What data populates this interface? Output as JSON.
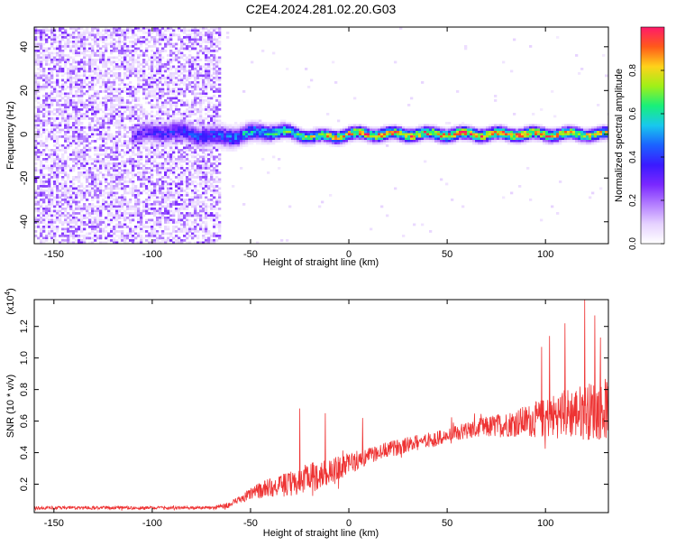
{
  "title": "C2E4.2024.281.02.20.G03",
  "colors": {
    "line": "#ee3333",
    "colormap": [
      "#ffffff",
      "#e6d2ff",
      "#b37dff",
      "#7a28ff",
      "#3a1aff",
      "#1b62ff",
      "#18c8ee",
      "#18f07a",
      "#a0f018",
      "#ffd21a",
      "#ff5a1a",
      "#ff1a6a"
    ]
  },
  "chart_data": [
    {
      "type": "heatmap",
      "xlabel": "Height of straight line (km)",
      "ylabel": "Frequency (Hz)",
      "xlim": [
        -160,
        132
      ],
      "ylim": [
        -50,
        49
      ],
      "x_ticks": [
        -150,
        -100,
        -50,
        0,
        50,
        100
      ],
      "y_ticks": [
        -40,
        -20,
        0,
        20,
        40
      ],
      "colorbar": {
        "label": "Normalized spectral amplitude",
        "range": [
          0,
          1
        ],
        "ticks": [
          0.0,
          0.2,
          0.4,
          0.6,
          0.8
        ]
      },
      "noise_region_x": [
        -160,
        -65
      ],
      "band": [
        {
          "x": -110,
          "amplitude": 0.3,
          "half_width_hz": 5
        },
        {
          "x": -90,
          "amplitude": 0.4,
          "half_width_hz": 5
        },
        {
          "x": -65,
          "amplitude": 0.45,
          "half_width_hz": 5
        },
        {
          "x": -50,
          "amplitude": 0.6,
          "half_width_hz": 4
        },
        {
          "x": -20,
          "amplitude": 0.75,
          "half_width_hz": 3
        },
        {
          "x": 0,
          "amplitude": 0.9,
          "half_width_hz": 3
        },
        {
          "x": 50,
          "amplitude": 0.95,
          "half_width_hz": 3
        },
        {
          "x": 100,
          "amplitude": 0.9,
          "half_width_hz": 3
        },
        {
          "x": 132,
          "amplitude": 0.8,
          "half_width_hz": 3
        }
      ]
    },
    {
      "type": "line",
      "xlabel": "Height of straight line (km)",
      "ylabel": "SNR (10 * v/v)",
      "yscale_label": "(x10",
      "yscale_exponent": "4",
      "xlim": [
        -160,
        132
      ],
      "ylim": [
        0.02,
        1.37
      ],
      "x_ticks": [
        -150,
        -100,
        -50,
        0,
        50,
        100
      ],
      "y_ticks": [
        0.2,
        0.4,
        0.6,
        0.8,
        1.0,
        1.2
      ],
      "envelope": {
        "x": [
          -160,
          -100,
          -70,
          -60,
          -50,
          -40,
          -30,
          -20,
          -10,
          0,
          10,
          20,
          30,
          40,
          50,
          60,
          70,
          80,
          90,
          100,
          110,
          120,
          132
        ],
        "mean": [
          0.05,
          0.05,
          0.05,
          0.07,
          0.14,
          0.18,
          0.2,
          0.24,
          0.28,
          0.33,
          0.38,
          0.42,
          0.45,
          0.48,
          0.5,
          0.54,
          0.56,
          0.58,
          0.6,
          0.62,
          0.65,
          0.66,
          0.68
        ],
        "noise": [
          0.01,
          0.01,
          0.01,
          0.02,
          0.04,
          0.06,
          0.08,
          0.1,
          0.08,
          0.07,
          0.05,
          0.05,
          0.05,
          0.05,
          0.05,
          0.06,
          0.07,
          0.08,
          0.1,
          0.13,
          0.16,
          0.18,
          0.2
        ]
      },
      "spikes": [
        {
          "x": -25,
          "y": 0.68
        },
        {
          "x": -12,
          "y": 0.65
        },
        {
          "x": 7,
          "y": 0.62
        },
        {
          "x": 98,
          "y": 1.07
        },
        {
          "x": 102,
          "y": 1.14
        },
        {
          "x": 110,
          "y": 1.22
        },
        {
          "x": 120,
          "y": 1.37
        },
        {
          "x": 125,
          "y": 1.27
        },
        {
          "x": 128,
          "y": 1.13
        }
      ]
    }
  ]
}
